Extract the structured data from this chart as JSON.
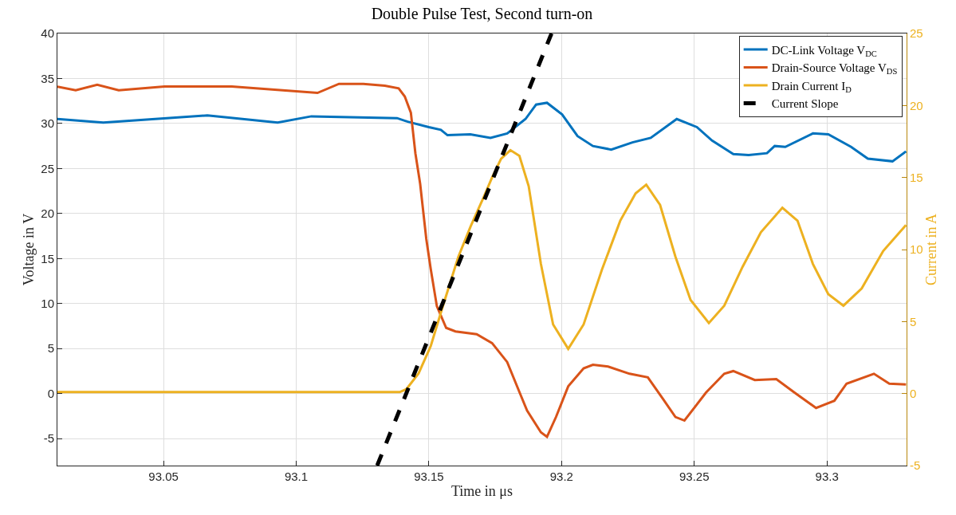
{
  "chart_data": {
    "type": "line",
    "title": "Double Pulse Test, Second turn-on",
    "xlabel": "Time in μs",
    "ylabel": "Voltage in V",
    "y2label": "Current in A",
    "xlim": [
      93.01,
      93.33
    ],
    "xticks": [
      93.05,
      93.1,
      93.15,
      93.2,
      93.25,
      93.3
    ],
    "ylim": [
      -8,
      40
    ],
    "yticks": [
      -5,
      0,
      5,
      10,
      15,
      20,
      25,
      30,
      35,
      40
    ],
    "y2lim": [
      -5,
      25
    ],
    "y2ticks": [
      -5,
      0,
      5,
      10,
      15,
      20,
      25
    ],
    "grid": true,
    "legend": "top right",
    "series": [
      {
        "name": "DC-Link Voltage V$_{DC}$",
        "color": "#0072bd",
        "x": [
          93.01,
          93.0273,
          93.0665,
          93.093,
          93.1057,
          93.138,
          93.142,
          93.15,
          93.1545,
          93.157,
          93.1656,
          93.1732,
          93.1795,
          93.1864,
          93.1904,
          93.1945,
          93.2002,
          93.206,
          93.2118,
          93.2187,
          93.2267,
          93.2336,
          93.2434,
          93.251,
          93.2567,
          93.2647,
          93.2705,
          93.2774,
          93.2803,
          93.2843,
          93.2947,
          93.3005,
          93.3091,
          93.3154,
          93.3247,
          93.3298
        ],
        "values": [
          30.5,
          30.1,
          30.9,
          30.1,
          30.8,
          30.6,
          30.2,
          29.6,
          29.3,
          28.7,
          28.8,
          28.4,
          28.9,
          30.5,
          32.1,
          32.3,
          31.0,
          28.6,
          27.5,
          27.1,
          27.9,
          28.4,
          30.5,
          29.6,
          28.1,
          26.6,
          26.5,
          26.7,
          27.5,
          27.4,
          28.9,
          28.8,
          27.4,
          26.1,
          25.8,
          26.9
        ]
      },
      {
        "name": "Drain-Source Voltage V$_{DS}$",
        "color": "#d95319",
        "x": [
          93.01,
          93.0169,
          93.025,
          93.0331,
          93.0504,
          93.0757,
          93.108,
          93.1161,
          93.1253,
          93.1334,
          93.1386,
          93.1409,
          93.1432,
          93.1449,
          93.1467,
          93.149,
          93.1507,
          93.153,
          93.1565,
          93.16,
          93.168,
          93.1738,
          93.1795,
          93.1842,
          93.187,
          93.1922,
          93.1945,
          93.1979,
          93.2025,
          93.2083,
          93.2118,
          93.2175,
          93.2256,
          93.2325,
          93.2382,
          93.2429,
          93.2463,
          93.2544,
          93.2613,
          93.2647,
          93.2728,
          93.2809,
          93.2878,
          93.2959,
          93.3028,
          93.3074,
          93.3177,
          93.3235,
          93.3298
        ],
        "values": [
          34.1,
          33.7,
          34.3,
          33.7,
          34.1,
          34.1,
          33.4,
          34.4,
          34.4,
          34.2,
          33.9,
          33.0,
          31.2,
          26.7,
          23.3,
          17.2,
          13.8,
          9.7,
          7.3,
          6.9,
          6.6,
          5.6,
          3.5,
          0.1,
          -1.9,
          -4.3,
          -4.8,
          -2.6,
          0.8,
          2.8,
          3.2,
          3.0,
          2.2,
          1.8,
          -0.6,
          -2.6,
          -3.0,
          0.1,
          2.2,
          2.5,
          1.5,
          1.6,
          0.1,
          -1.6,
          -0.8,
          1.1,
          2.2,
          1.1,
          1.0
        ]
      },
      {
        "name": "Drain Current I$_{D}$",
        "color": "#edb120",
        "axis": "y2",
        "x": [
          93.01,
          93.05,
          93.1,
          93.139,
          93.1415,
          93.1461,
          93.1507,
          93.1553,
          93.1611,
          93.1657,
          93.1703,
          93.1738,
          93.1772,
          93.1807,
          93.1841,
          93.1876,
          93.1922,
          93.1968,
          93.2025,
          93.2083,
          93.2152,
          93.2221,
          93.2279,
          93.2319,
          93.2371,
          93.2429,
          93.2486,
          93.2555,
          93.2613,
          93.2682,
          93.2751,
          93.2832,
          93.2889,
          93.2947,
          93.3005,
          93.3062,
          93.3131,
          93.3212,
          93.3298
        ],
        "values": [
          0.1,
          0.1,
          0.1,
          0.1,
          0.3,
          1.4,
          3.3,
          6.1,
          9.5,
          11.6,
          13.5,
          15.0,
          16.3,
          16.9,
          16.5,
          14.4,
          9.0,
          4.8,
          3.1,
          4.8,
          8.6,
          12.0,
          13.9,
          14.5,
          13.1,
          9.5,
          6.5,
          4.9,
          6.1,
          8.8,
          11.2,
          12.9,
          12.0,
          9.0,
          6.9,
          6.1,
          7.3,
          9.9,
          11.7
        ]
      },
      {
        "name": "Current Slope",
        "color": "#000000",
        "axis": "y2",
        "line_style": "dashed",
        "x": [
          93.1305,
          93.1962
        ],
        "values": [
          -5,
          25
        ]
      }
    ]
  }
}
